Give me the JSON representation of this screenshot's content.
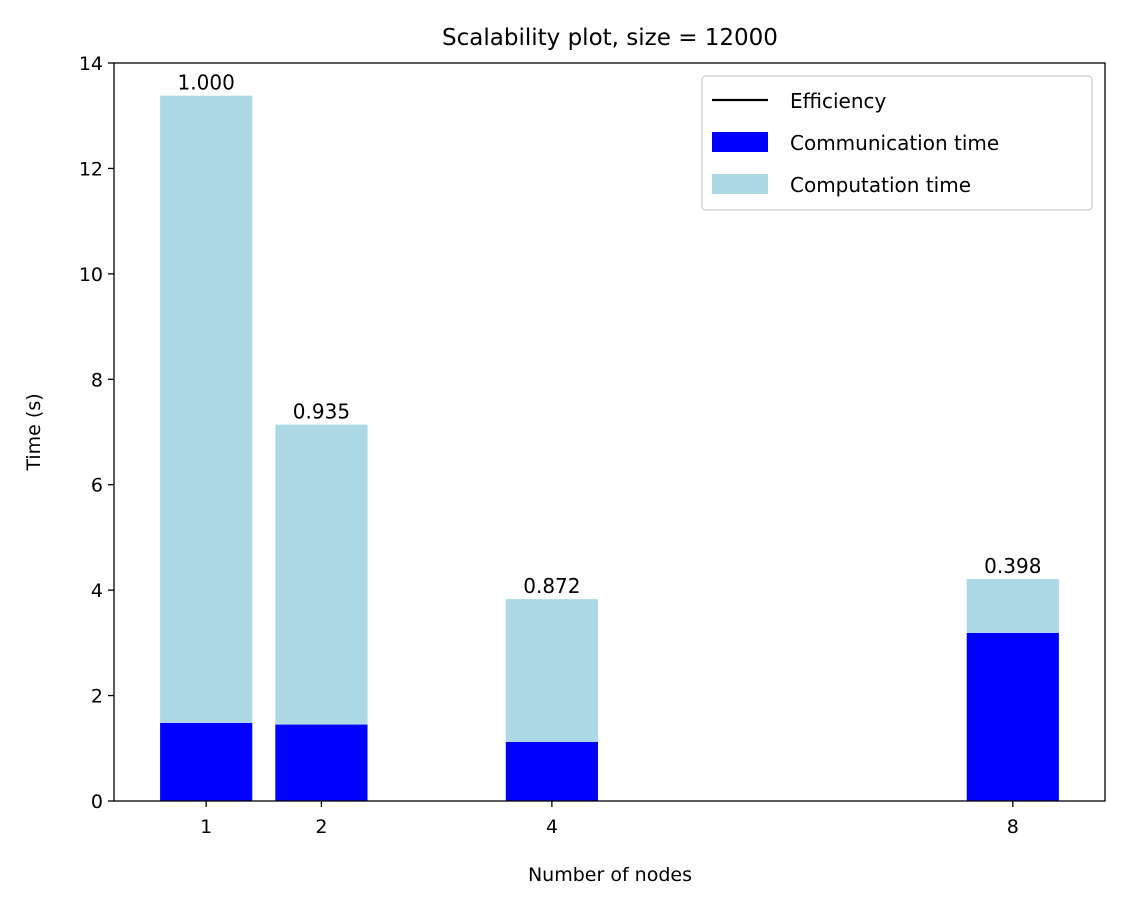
{
  "chart_data": {
    "type": "bar",
    "stacked": true,
    "title": "Scalability plot, size = 12000",
    "xlabel": "Number of nodes",
    "ylabel": "Time (s)",
    "x": [
      1,
      2,
      4,
      8
    ],
    "xticks": [
      "1",
      "2",
      "4",
      "8"
    ],
    "xlim": [
      0.2,
      8.8
    ],
    "ylim": [
      0,
      14
    ],
    "yticks": [
      "0",
      "2",
      "4",
      "6",
      "8",
      "10",
      "12",
      "14"
    ],
    "grid": false,
    "legend_position": "top-right",
    "series": [
      {
        "name": "Communication time",
        "color": "#0000ff",
        "values": [
          1.48,
          1.45,
          1.12,
          3.19
        ]
      },
      {
        "name": "Computation time",
        "color": "#add8e6",
        "values": [
          11.9,
          5.69,
          2.71,
          1.02
        ]
      }
    ],
    "efficiency_line": {
      "name": "Efficiency",
      "color": "#000000"
    },
    "bar_labels": [
      "1.000",
      "0.935",
      "0.872",
      "0.398"
    ]
  }
}
